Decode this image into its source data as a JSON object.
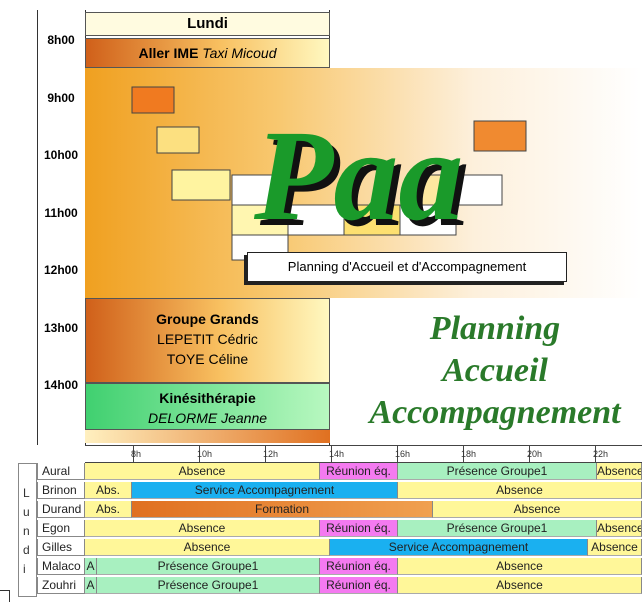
{
  "day_column": {
    "day": "Lundi",
    "hours": [
      "8h00",
      "9h00",
      "10h00",
      "11h00",
      "12h00",
      "13h00",
      "14h00"
    ],
    "events": [
      {
        "title": "Aller IME",
        "detail": "Taxi Micoud"
      },
      {
        "lines": [
          "Groupe Grands",
          "LEPETIT Cédric",
          "TOYE Céline"
        ]
      },
      {
        "lines": [
          "Kinésithérapie",
          "DELORME Jeanne"
        ]
      }
    ]
  },
  "logo": {
    "letters": "Paa",
    "subtitle": "Planning d'Accueil et d'Accompagnement",
    "title_lines": [
      "Planning",
      "Accueil",
      "Accompagnement"
    ]
  },
  "timeline": {
    "day_letters": [
      "L",
      "u",
      "n",
      "d",
      "i"
    ],
    "hour_ticks": [
      "8h",
      "10h",
      "12h",
      "14h",
      "16h",
      "18h",
      "20h",
      "22h"
    ],
    "rows": [
      {
        "name": "Aural",
        "segments": [
          "Absence",
          "Réunion éq.",
          "Présence Groupe1",
          "Absence"
        ]
      },
      {
        "name": "Brinon",
        "segments": [
          "Abs.",
          "Service Accompagnement",
          "Absence"
        ]
      },
      {
        "name": "Durand",
        "segments": [
          "Abs.",
          "Formation",
          "Absence"
        ]
      },
      {
        "name": "Egon",
        "segments": [
          "Absence",
          "Réunion éq.",
          "Présence Groupe1",
          "Absence"
        ]
      },
      {
        "name": "Gilles",
        "segments": [
          "Absence",
          "Service Accompagnement",
          "Absence"
        ]
      },
      {
        "name": "Malaco",
        "segments": [
          "A",
          "Présence Groupe1",
          "Réunion éq.",
          "Absence"
        ]
      },
      {
        "name": "Zouhri",
        "segments": [
          "A",
          "Présence Groupe1",
          "Réunion éq.",
          "Absence"
        ]
      }
    ]
  }
}
